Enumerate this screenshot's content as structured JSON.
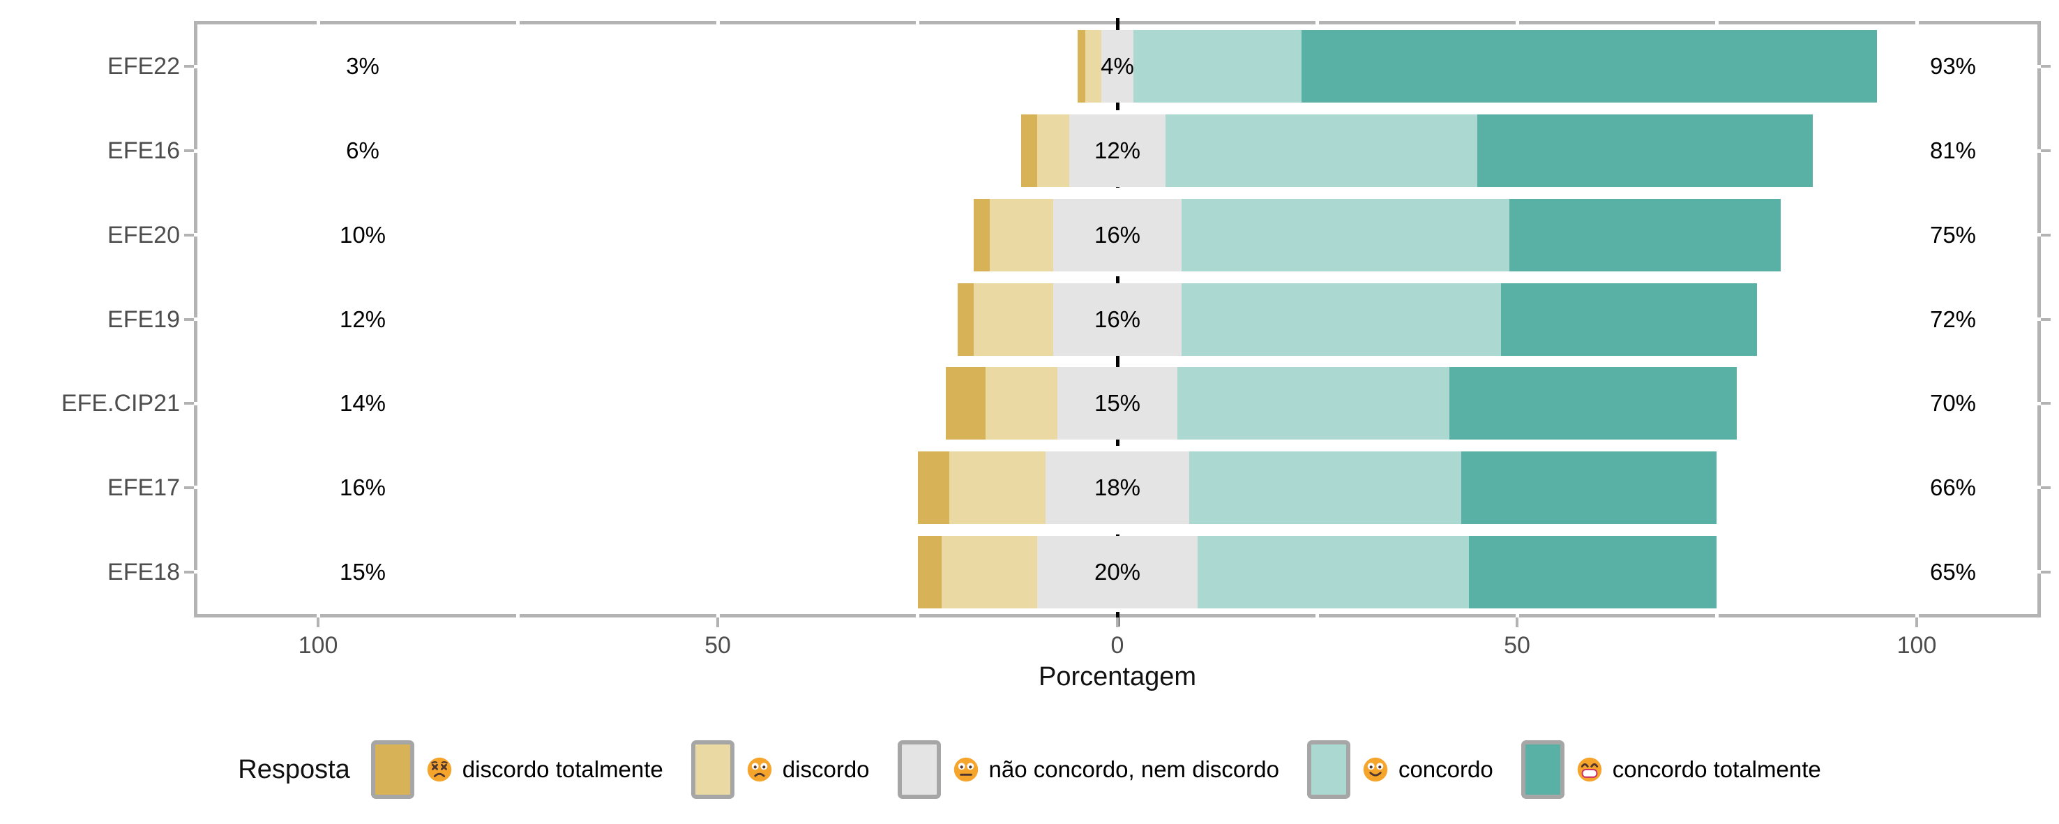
{
  "chart_data": {
    "type": "bar",
    "subtype": "diverging-stacked-likert",
    "title": "",
    "xlabel": "Porcentagem",
    "x_tick_labels": [
      "100",
      "50",
      "0",
      "50",
      "100"
    ],
    "x_tick_values": [
      -100,
      -50,
      0,
      50,
      100
    ],
    "x_minor_values": [
      -100,
      -75,
      -50,
      -25,
      0,
      25,
      50,
      75,
      100
    ],
    "xlim": [
      -115.5,
      115.5
    ],
    "grid": "white-on-border-gaps",
    "legend_position": "bottom",
    "categories": [
      "discordo totalmente",
      "discordo",
      "não concordo, nem discordo",
      "concordo",
      "concordo totalmente"
    ],
    "category_colors": [
      "#D8B256",
      "#EBD9A4",
      "#E4E4E4",
      "#ABD8D1",
      "#58B1A4"
    ],
    "neutral_split": true,
    "rows": [
      {
        "item": "EFE22",
        "left_label": "3%",
        "mid_label": "4%",
        "right_label": "93%",
        "values": [
          1,
          2,
          4,
          21,
          72
        ]
      },
      {
        "item": "EFE16",
        "left_label": "6%",
        "mid_label": "12%",
        "right_label": "81%",
        "values": [
          2,
          4,
          12,
          39,
          42
        ]
      },
      {
        "item": "EFE20",
        "left_label": "10%",
        "mid_label": "16%",
        "right_label": "75%",
        "values": [
          2,
          8,
          16,
          41,
          34
        ]
      },
      {
        "item": "EFE19",
        "left_label": "12%",
        "mid_label": "16%",
        "right_label": "72%",
        "values": [
          2,
          10,
          16,
          40,
          32
        ]
      },
      {
        "item": "EFE.CIP21",
        "left_label": "14%",
        "mid_label": "15%",
        "right_label": "70%",
        "values": [
          5,
          9,
          15,
          34,
          36
        ]
      },
      {
        "item": "EFE17",
        "left_label": "16%",
        "mid_label": "18%",
        "right_label": "66%",
        "values": [
          4,
          12,
          18,
          34,
          32
        ]
      },
      {
        "item": "EFE18",
        "left_label": "15%",
        "mid_label": "20%",
        "right_label": "65%",
        "values": [
          3,
          12,
          20,
          34,
          31
        ]
      }
    ]
  },
  "legend": {
    "title": "Resposta",
    "items": [
      {
        "label": "discordo totalmente",
        "color": "#D8B256",
        "emoji": "persevering-face"
      },
      {
        "label": "discordo",
        "color": "#EBD9A4",
        "emoji": "frowning-face"
      },
      {
        "label": "não concordo, nem discordo",
        "color": "#E4E4E4",
        "emoji": "neutral-face"
      },
      {
        "label": "concordo",
        "color": "#ABD8D1",
        "emoji": "smiling-face"
      },
      {
        "label": "concordo totalmente",
        "color": "#58B1A4",
        "emoji": "grinning-face"
      }
    ]
  },
  "style_colors": {
    "panel_border": "#b3b3b3",
    "axis_tick": "#b3b3b3",
    "axis_text": "#4d4d4d",
    "zero_line": "#000000",
    "swatch_border": "#a6a6a6",
    "emoji_face": "#F6A52C",
    "emoji_features": "#4E342E",
    "emoji_mouth_outline": "#CC3366"
  }
}
